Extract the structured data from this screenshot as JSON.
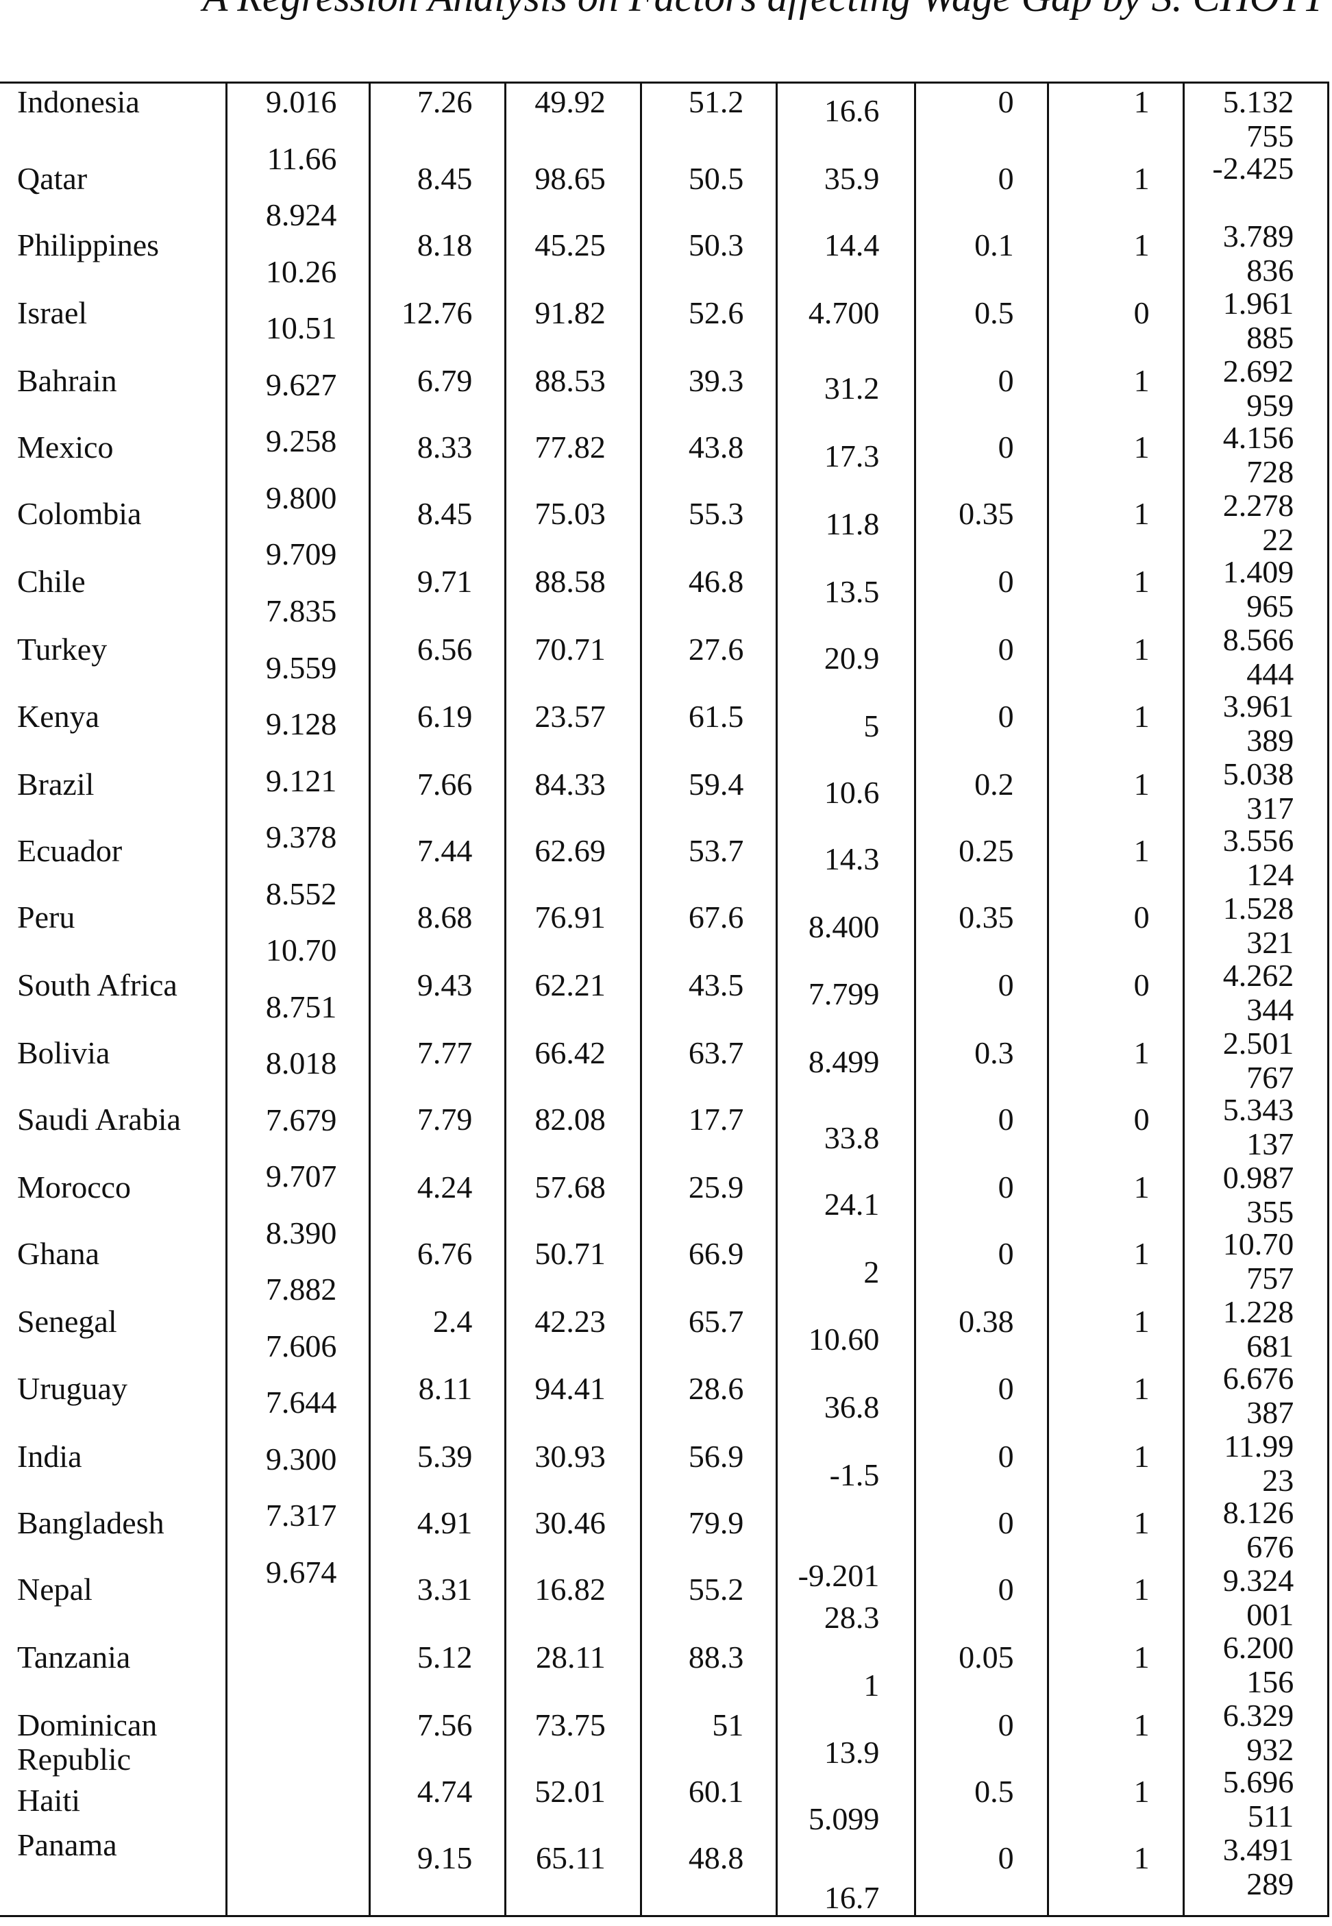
{
  "header": {
    "running_title": "A Regression Analysis on Factors affecting Wage Gap by S. CHOTT"
  },
  "table": {
    "rows": [
      {
        "country": "Indonesia",
        "c1": "9.016",
        "c2": "7.26",
        "c3": "49.92",
        "c4": "51.2",
        "c5": "16.6",
        "c6": "0",
        "c7": "1",
        "c8": "5.132755"
      },
      {
        "country": "Qatar",
        "c1": "11.66",
        "c2": "8.45",
        "c3": "98.65",
        "c4": "50.5",
        "c5": "35.9",
        "c6": "0",
        "c7": "1",
        "c8": "-2.425"
      },
      {
        "country": "Philippines",
        "c1": "8.924",
        "c2": "8.18",
        "c3": "45.25",
        "c4": "50.3",
        "c5": "14.4",
        "c6": "0.1",
        "c7": "1",
        "c8": "3.789836"
      },
      {
        "country": "Israel",
        "c1": "10.26",
        "c2": "12.76",
        "c3": "91.82",
        "c4": "52.6",
        "c5": "4.700",
        "c6": "0.5",
        "c7": "0",
        "c8": "1.961885"
      },
      {
        "country": "Bahrain",
        "c1": "10.51",
        "c2": "6.79",
        "c3": "88.53",
        "c4": "39.3",
        "c5": "31.2",
        "c6": "0",
        "c7": "1",
        "c8": "2.692959"
      },
      {
        "country": "Mexico",
        "c1": "9.627",
        "c2": "8.33",
        "c3": "77.82",
        "c4": "43.8",
        "c5": "17.3",
        "c6": "0",
        "c7": "1",
        "c8": "4.156728"
      },
      {
        "country": "Colombia",
        "c1": "9.258",
        "c2": "8.45",
        "c3": "75.03",
        "c4": "55.3",
        "c5": "11.8",
        "c6": "0.35",
        "c7": "1",
        "c8": "2.27822"
      },
      {
        "country": "Chile",
        "c1": "9.800",
        "c2": "9.71",
        "c3": "88.58",
        "c4": "46.8",
        "c5": "13.5",
        "c6": "0",
        "c7": "1",
        "c8": "1.409965"
      },
      {
        "country": "Turkey",
        "c1": "9.709",
        "c2": "6.56",
        "c3": "70.71",
        "c4": "27.6",
        "c5": "20.9",
        "c6": "0",
        "c7": "1",
        "c8": "8.566444"
      },
      {
        "country": "Kenya",
        "c1": "7.835",
        "c2": "6.19",
        "c3": "23.57",
        "c4": "61.5",
        "c5": "5",
        "c6": "0",
        "c7": "1",
        "c8": "3.961389"
      },
      {
        "country": "Brazil",
        "c1": "9.559",
        "c2": "7.66",
        "c3": "84.33",
        "c4": "59.4",
        "c5": "10.6",
        "c6": "0.2",
        "c7": "1",
        "c8": "5.038317"
      },
      {
        "country": "Ecuador",
        "c1": "9.128",
        "c2": "7.44",
        "c3": "62.69",
        "c4": "53.7",
        "c5": "14.3",
        "c6": "0.25",
        "c7": "1",
        "c8": "3.556124"
      },
      {
        "country": "Peru",
        "c1": "9.121",
        "c2": "8.68",
        "c3": "76.91",
        "c4": "67.6",
        "c5": "8.400",
        "c6": "0.35",
        "c7": "0",
        "c8": "1.528321"
      },
      {
        "country": "South Africa",
        "c1": "9.378",
        "c2": "9.43",
        "c3": "62.21",
        "c4": "43.5",
        "c5": "7.799",
        "c6": "0",
        "c7": "0",
        "c8": "4.262344"
      },
      {
        "country": "Bolivia",
        "c1": "8.552",
        "c2": "7.77",
        "c3": "66.42",
        "c4": "63.7",
        "c5": "8.499",
        "c6": "0.3",
        "c7": "1",
        "c8": "2.501767"
      },
      {
        "country": "Saudi Arabia",
        "c1": "10.70",
        "c2": "7.79",
        "c3": "82.08",
        "c4": "17.7",
        "c5": "33.8",
        "c6": "0",
        "c7": "0",
        "c8": "5.343137"
      },
      {
        "country": "Morocco",
        "c1": "8.751",
        "c2": "4.24",
        "c3": "57.68",
        "c4": "25.9",
        "c5": "24.1",
        "c6": "0",
        "c7": "1",
        "c8": "0.987355"
      },
      {
        "country": "Ghana",
        "c1": "8.018",
        "c2": "6.76",
        "c3": "50.71",
        "c4": "66.9",
        "c5": "2",
        "c6": "0",
        "c7": "1",
        "c8": "10.70757"
      },
      {
        "country": "Senegal",
        "c1": "7.679",
        "c2": "2.4",
        "c3": "42.23",
        "c4": "65.7",
        "c5": "10.60",
        "c6": "0.38",
        "c7": "1",
        "c8": "1.228681"
      },
      {
        "country": "Uruguay",
        "c1": "9.707",
        "c2": "8.11",
        "c3": "94.41",
        "c4": "28.6",
        "c5": "36.8",
        "c6": "0",
        "c7": "1",
        "c8": "6.676387"
      },
      {
        "country": "India",
        "c1": "8.390",
        "c2": "5.39",
        "c3": "30.93",
        "c4": "56.9",
        "c5": "-1.5",
        "c6": "0",
        "c7": "1",
        "c8": "11.9923"
      },
      {
        "country": "Bangladesh",
        "c1": "7.882",
        "c2": "4.91",
        "c3": "30.46",
        "c4": "79.9",
        "c5": "-9.201",
        "c6": "0",
        "c7": "1",
        "c8": "8.126676"
      },
      {
        "country": "Nepal",
        "c1": "7.606",
        "c2": "3.31",
        "c3": "16.82",
        "c4": "55.2",
        "c5": "28.3",
        "c6": "0",
        "c7": "1",
        "c8": "9.324001"
      },
      {
        "country": "Tanzania",
        "c1": "7.644",
        "c2": "5.12",
        "c3": "28.11",
        "c4": "88.3",
        "c5": "1",
        "c6": "0.05",
        "c7": "1",
        "c8": "6.200156"
      },
      {
        "country": "Dominican Republic",
        "c1": "9.300",
        "c2": "7.56",
        "c3": "73.75",
        "c4": "51",
        "c5": "13.9",
        "c6": "0",
        "c7": "1",
        "c8": "6.329932"
      },
      {
        "country": "Haiti",
        "c1": "7.317",
        "c2": "4.74",
        "c3": "52.01",
        "c4": "60.1",
        "c5": "5.099",
        "c6": "0.5",
        "c7": "1",
        "c8": "5.696511"
      },
      {
        "country": "Panama",
        "c1": "9.674",
        "c2": "9.15",
        "c3": "65.11",
        "c4": "48.8",
        "c5": "16.7",
        "c6": "0",
        "c7": "1",
        "c8": "3.491289"
      }
    ]
  }
}
